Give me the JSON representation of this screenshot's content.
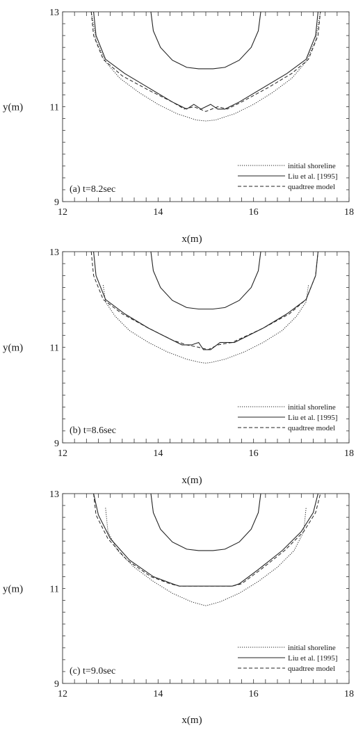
{
  "chart_data": [
    {
      "type": "line",
      "panel_label": "(a) t=8.2sec",
      "xlabel": "x(m)",
      "ylabel": "y(m)",
      "xlim": [
        12,
        18
      ],
      "ylim": [
        9,
        13
      ],
      "x_ticks": [
        "12",
        "14",
        "16",
        "18"
      ],
      "y_ticks": [
        "9",
        "11",
        "13"
      ],
      "legend": {
        "placement": "bottom-right",
        "entries": [
          "initial shoreline",
          "Liu et al. [1995]",
          "quadtree model"
        ]
      },
      "series": [
        {
          "name": "initial shoreline",
          "x": [
            12.6,
            12.7,
            12.9,
            13.2,
            13.6,
            14.0,
            14.4,
            14.8,
            15.0,
            15.2,
            15.6,
            16.0,
            16.4,
            16.8,
            17.1,
            17.3,
            17.4
          ],
          "y": [
            13.0,
            12.4,
            11.95,
            11.6,
            11.3,
            11.05,
            10.85,
            10.72,
            10.7,
            10.72,
            10.85,
            11.05,
            11.3,
            11.6,
            11.95,
            12.4,
            13.0
          ]
        },
        {
          "name": "Liu et al. [1995]",
          "x": [
            13.85,
            13.9,
            14.05,
            14.3,
            14.6,
            14.85,
            15.15,
            15.4,
            15.7,
            15.95,
            16.1,
            16.15,
            12.65,
            12.7,
            12.9,
            13.3,
            13.8,
            14.3,
            14.6,
            14.75,
            14.9,
            15.1,
            15.25,
            15.4,
            15.7,
            16.2,
            16.7,
            17.1,
            17.3,
            17.35
          ],
          "y": [
            13.0,
            12.6,
            12.25,
            11.98,
            11.83,
            11.8,
            11.8,
            11.83,
            11.98,
            12.25,
            12.6,
            13.0,
            13.0,
            12.5,
            12.0,
            11.7,
            11.4,
            11.1,
            10.95,
            11.05,
            10.95,
            11.05,
            10.95,
            10.95,
            11.1,
            11.4,
            11.7,
            12.0,
            12.5,
            13.0
          ]
        },
        {
          "name": "quadtree model",
          "x": [
            12.6,
            12.65,
            12.85,
            13.25,
            13.8,
            14.3,
            14.55,
            14.75,
            15.0,
            15.25,
            15.45,
            15.75,
            16.3,
            16.8,
            17.15,
            17.35,
            17.4
          ],
          "y": [
            13.0,
            12.5,
            12.0,
            11.65,
            11.35,
            11.1,
            10.95,
            11.0,
            10.9,
            11.0,
            10.95,
            11.1,
            11.4,
            11.7,
            12.0,
            12.5,
            13.0
          ]
        }
      ]
    },
    {
      "type": "line",
      "panel_label": "(b) t=8.6sec",
      "xlabel": "x(m)",
      "ylabel": "y(m)",
      "xlim": [
        12,
        18
      ],
      "ylim": [
        9,
        13
      ],
      "x_ticks": [
        "12",
        "14",
        "16",
        "18"
      ],
      "y_ticks": [
        "9",
        "11",
        "13"
      ],
      "legend": {
        "placement": "bottom-right",
        "entries": [
          "initial shoreline",
          "Liu et al. [1995]",
          "quadtree model"
        ]
      },
      "series": [
        {
          "name": "initial shoreline",
          "x": [
            12.85,
            12.9,
            13.1,
            13.4,
            13.8,
            14.2,
            14.6,
            14.9,
            15.0,
            15.1,
            15.4,
            15.8,
            16.2,
            16.6,
            16.9,
            17.1,
            17.15
          ],
          "y": [
            12.3,
            11.95,
            11.65,
            11.35,
            11.1,
            10.9,
            10.75,
            10.68,
            10.67,
            10.68,
            10.75,
            10.9,
            11.1,
            11.35,
            11.65,
            11.95,
            12.3
          ]
        },
        {
          "name": "Liu et al. [1995]",
          "x": [
            13.85,
            13.9,
            14.05,
            14.3,
            14.6,
            14.85,
            15.15,
            15.4,
            15.7,
            15.95,
            16.1,
            16.15,
            12.65,
            12.7,
            12.9,
            13.3,
            13.8,
            14.3,
            14.5,
            14.7,
            14.85,
            14.95,
            15.1,
            15.3,
            15.6,
            16.2,
            16.7,
            17.1,
            17.3,
            17.35
          ],
          "y": [
            13.0,
            12.6,
            12.25,
            11.98,
            11.83,
            11.8,
            11.8,
            11.83,
            11.98,
            12.25,
            12.6,
            13.0,
            13.0,
            12.5,
            12.0,
            11.7,
            11.4,
            11.15,
            11.05,
            11.05,
            11.1,
            10.95,
            10.95,
            11.1,
            11.1,
            11.4,
            11.7,
            12.0,
            12.5,
            13.0
          ]
        },
        {
          "name": "quadtree model",
          "x": [
            12.6,
            12.65,
            12.85,
            13.25,
            13.8,
            14.3,
            14.6,
            14.85,
            15.05,
            15.25,
            15.55,
            16.2,
            16.75,
            17.1,
            17.3,
            17.35
          ],
          "y": [
            13.0,
            12.5,
            12.0,
            11.7,
            11.4,
            11.15,
            11.05,
            11.0,
            10.95,
            11.05,
            11.1,
            11.4,
            11.7,
            12.0,
            12.5,
            13.0
          ]
        }
      ]
    },
    {
      "type": "line",
      "panel_label": "(c) t=9.0sec",
      "xlabel": "x(m)",
      "ylabel": "y(m)",
      "xlim": [
        12,
        18
      ],
      "ylim": [
        9,
        13
      ],
      "x_ticks": [
        "12",
        "14",
        "16",
        "18"
      ],
      "y_ticks": [
        "9",
        "11",
        "13"
      ],
      "legend": {
        "placement": "bottom-right",
        "entries": [
          "initial shoreline",
          "Liu et al. [1995]",
          "quadtree model"
        ]
      },
      "series": [
        {
          "name": "initial shoreline",
          "x": [
            12.9,
            12.95,
            13.15,
            13.5,
            13.9,
            14.3,
            14.7,
            14.95,
            15.0,
            15.05,
            15.3,
            15.7,
            16.1,
            16.5,
            16.85,
            17.05,
            17.1
          ],
          "y": [
            12.7,
            12.2,
            11.8,
            11.45,
            11.15,
            10.9,
            10.72,
            10.65,
            10.64,
            10.65,
            10.72,
            10.9,
            11.15,
            11.45,
            11.8,
            12.2,
            12.7
          ]
        },
        {
          "name": "Liu et al. [1995]",
          "x": [
            13.85,
            13.9,
            14.05,
            14.3,
            14.6,
            14.85,
            15.15,
            15.4,
            15.7,
            15.95,
            16.1,
            16.15,
            12.65,
            12.75,
            13.0,
            13.4,
            13.9,
            14.3,
            14.45,
            14.7,
            15.0,
            15.3,
            15.55,
            15.7,
            16.1,
            16.6,
            17.0,
            17.25,
            17.35
          ],
          "y": [
            13.0,
            12.6,
            12.25,
            11.98,
            11.83,
            11.8,
            11.8,
            11.83,
            11.98,
            12.25,
            12.6,
            13.0,
            13.0,
            12.55,
            12.05,
            11.6,
            11.25,
            11.1,
            11.05,
            11.05,
            11.05,
            11.05,
            11.05,
            11.1,
            11.4,
            11.8,
            12.2,
            12.6,
            13.0
          ]
        },
        {
          "name": "quadtree model",
          "x": [
            12.65,
            12.7,
            12.95,
            13.35,
            13.85,
            14.25,
            14.45,
            14.7,
            15.0,
            15.3,
            15.55,
            15.75,
            16.15,
            16.65,
            17.05,
            17.3,
            17.4
          ],
          "y": [
            13.0,
            12.55,
            12.05,
            11.6,
            11.25,
            11.1,
            11.05,
            11.05,
            11.05,
            11.05,
            11.05,
            11.1,
            11.4,
            11.8,
            12.2,
            12.6,
            13.0
          ]
        }
      ]
    }
  ]
}
